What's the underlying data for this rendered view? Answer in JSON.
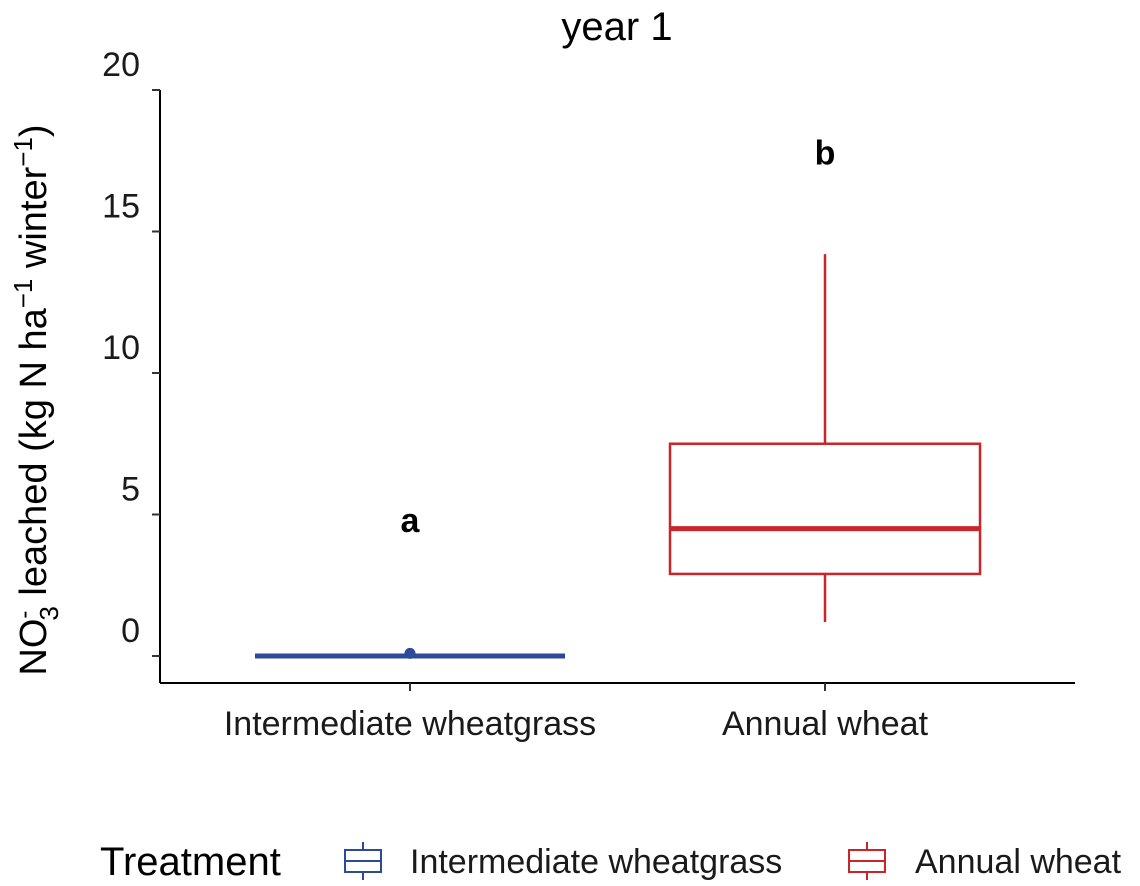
{
  "chart_data": {
    "type": "box",
    "title": "year 1",
    "ylabel": {
      "main": "NO",
      "sup_minus": "-",
      "sub_3": "3",
      "rest1": " leached (kg N ha",
      "exp1": "−1",
      "rest2": " winter",
      "exp2": "−1",
      "close": ")"
    },
    "xlabel": "",
    "ylim": [
      -1,
      20
    ],
    "yticks": [
      0,
      5,
      10,
      15,
      20
    ],
    "categories": [
      "Intermediate wheatgrass",
      "Annual wheat"
    ],
    "boxes": [
      {
        "category": "Intermediate wheatgrass",
        "min": 0.0,
        "q1": 0.0,
        "median": 0.0,
        "q3": 0.0,
        "max": 0.0,
        "outliers": [
          0.2
        ],
        "color": "#2c4a9a",
        "letter": "a",
        "letter_y": 4.8
      },
      {
        "category": "Annual wheat",
        "min": 1.2,
        "q1": 2.9,
        "median": 4.5,
        "q3": 7.5,
        "max": 14.2,
        "outliers": [],
        "color": "#cc2529",
        "letter": "b",
        "letter_y": 17.8
      }
    ],
    "legend": {
      "title": "Treatment",
      "position": "bottom",
      "items": [
        {
          "label": "Intermediate wheatgrass",
          "color": "#2c4a9a"
        },
        {
          "label": "Annual wheat",
          "color": "#cc2529"
        }
      ]
    },
    "grid": false
  }
}
